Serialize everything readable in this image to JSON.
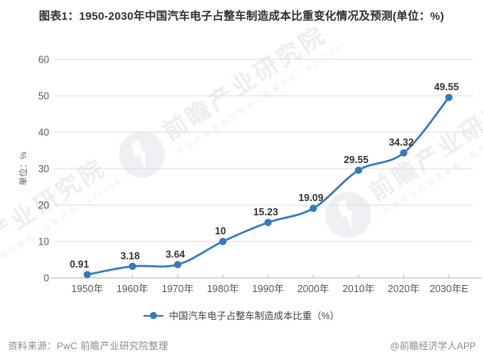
{
  "title": "图表1：1950-2030年中国汽车电子占整车制造成本比重变化情况及预测(单位：%)",
  "chart_data": {
    "type": "line",
    "categories": [
      "1950年",
      "1960年",
      "1970年",
      "1980年",
      "1990年",
      "2000年",
      "2010年",
      "2020年",
      "2030年E"
    ],
    "series": [
      {
        "name": "中国汽车电子占整车制造成本比重（%）",
        "values": [
          0.91,
          3.18,
          3.64,
          10,
          15.23,
          19.09,
          29.55,
          34.32,
          49.55
        ]
      }
    ],
    "title": "图表1：1950-2030年中国汽车电子占整车制造成本比重变化情况及预测(单位：%)",
    "xlabel": "",
    "ylabel": "单位：%",
    "ylim": [
      0,
      60
    ],
    "yticks": [
      0,
      10,
      20,
      30,
      40,
      50,
      60
    ],
    "grid": true,
    "legend_position": "bottom",
    "line_color": "#3479be",
    "smooth": true
  },
  "y_axis": {
    "unit_label": "单位：%"
  },
  "legend": {
    "label": "中国汽车电子占整车制造成本比重（%）"
  },
  "footer": {
    "source": "资料来源：PwC 前瞻产业研究院整理",
    "credit": "@前瞻经济学人APP"
  },
  "watermark": {
    "name": "前瞻产业研究院",
    "subtext": "中国产业咨询领导者（股票代码：839599）"
  },
  "colors": {
    "line": "#3479be",
    "gridline": "#dddddd",
    "axis": "#c2c2c2",
    "tick_text": "#595959",
    "data_label": "#333333"
  }
}
